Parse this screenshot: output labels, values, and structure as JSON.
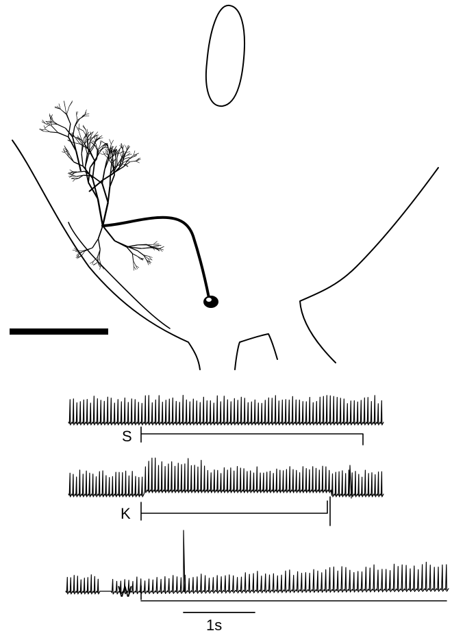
{
  "traces": [
    {
      "label": "S"
    },
    {
      "label": "K"
    },
    {
      "label": "W"
    }
  ],
  "time_scale": {
    "label": "1s"
  },
  "colors": {
    "ink": "#000000",
    "background": "#ffffff"
  }
}
